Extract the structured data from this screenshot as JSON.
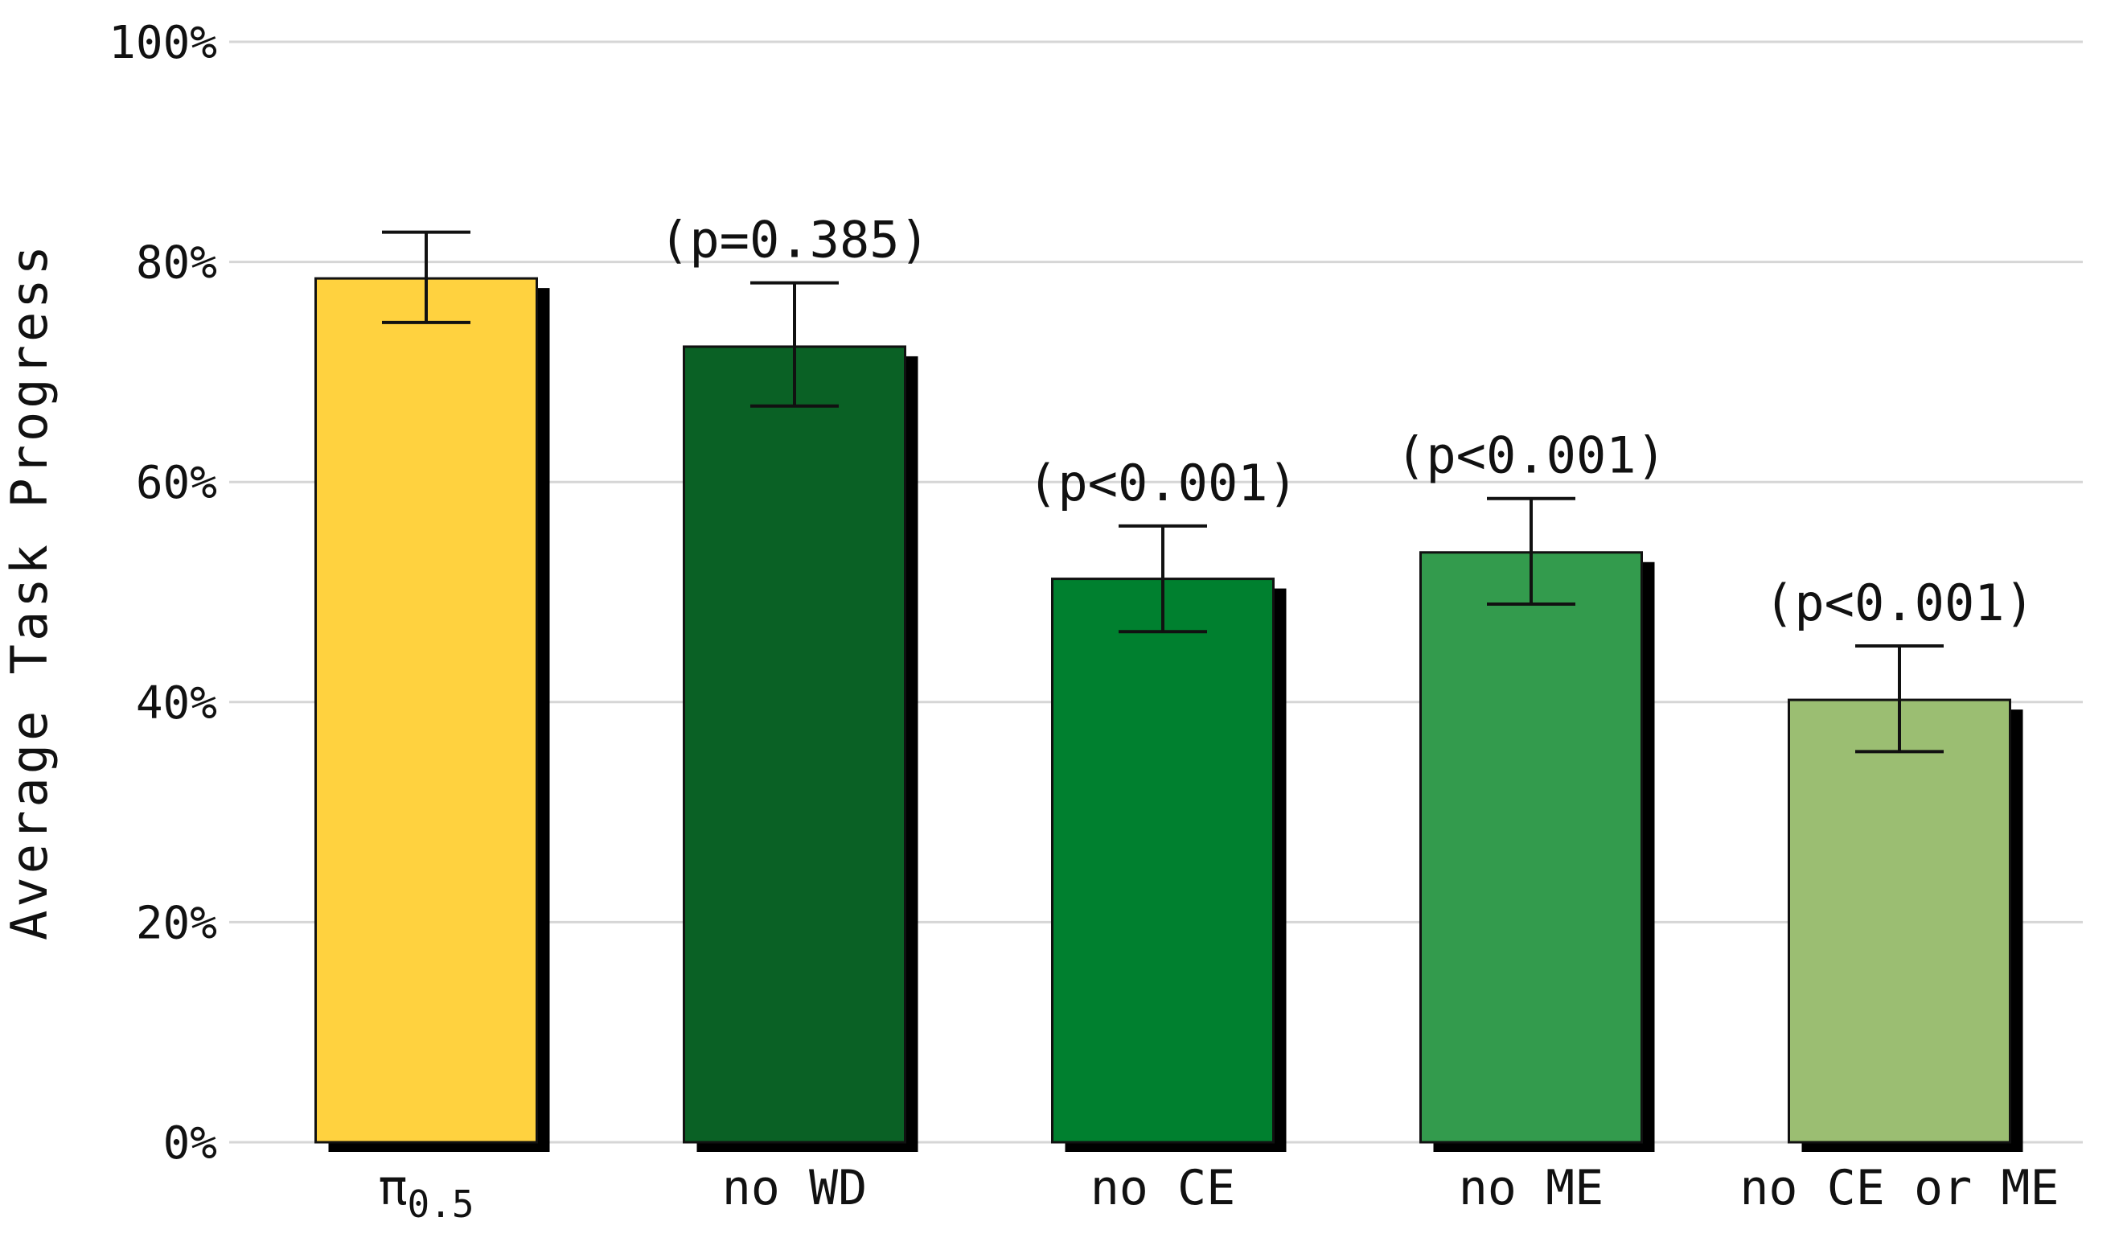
{
  "chart_data": {
    "type": "bar",
    "title": "",
    "xlabel": "",
    "ylabel": "Average Task Progress",
    "ylim": [
      0,
      100
    ],
    "y_ticks": [
      "0%",
      "20%",
      "40%",
      "60%",
      "80%",
      "100%"
    ],
    "y_tick_values": [
      0,
      20,
      40,
      60,
      80,
      100
    ],
    "grid": true,
    "legend": "none",
    "categories": [
      {
        "base": "π",
        "sub": "0.5"
      },
      {
        "base": "no WD",
        "sub": ""
      },
      {
        "base": "no CE",
        "sub": ""
      },
      {
        "base": "no ME",
        "sub": ""
      },
      {
        "base": "no CE or ME",
        "sub": ""
      }
    ],
    "values": [
      78.5,
      72.3,
      51.2,
      53.6,
      40.2
    ],
    "error_low": [
      74.5,
      66.9,
      46.4,
      48.9,
      35.5
    ],
    "error_high": [
      82.7,
      78.1,
      56.0,
      58.5,
      45.1
    ],
    "annotations": [
      "",
      "(p=0.385)",
      "(p<0.001)",
      "(p<0.001)",
      "(p<0.001)"
    ],
    "colors": [
      "#FFD23F",
      "#0A6125",
      "#00802F",
      "#339B4D",
      "#9BBE72"
    ]
  }
}
